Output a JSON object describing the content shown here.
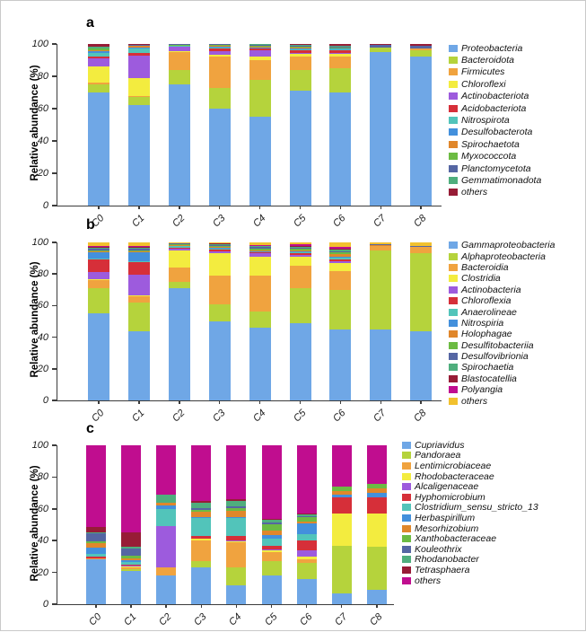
{
  "figure_title": "",
  "chart_data": [
    {
      "type": "bar",
      "stacked": true,
      "panel_label": "a",
      "ylabel": "Relative abundance (%)",
      "ylim": [
        0,
        100
      ],
      "yticks": [
        0,
        20,
        40,
        60,
        80,
        100
      ],
      "grid": false,
      "legend_position": "right",
      "categories": [
        "C0",
        "C1",
        "C2",
        "C3",
        "C4",
        "C5",
        "C6",
        "C7",
        "C8"
      ],
      "series": [
        {
          "name": "Proteobacteria",
          "color": "#6FA7E6",
          "values": [
            70,
            62,
            75,
            60,
            55,
            71,
            70,
            95,
            92
          ]
        },
        {
          "name": "Bacteroidota",
          "color": "#B5D33C",
          "values": [
            5,
            5,
            9,
            13,
            23,
            13,
            15,
            3,
            4
          ]
        },
        {
          "name": "Firmicutes",
          "color": "#F0A33F",
          "values": [
            1,
            1,
            11,
            19,
            12,
            8,
            7,
            0,
            1
          ]
        },
        {
          "name": "Chloroflexi",
          "color": "#F3EC3F",
          "values": [
            10,
            11,
            0.5,
            1.5,
            2,
            2,
            2,
            0,
            0
          ]
        },
        {
          "name": "Actinobacteriota",
          "color": "#9D5BDD",
          "values": [
            5,
            14,
            3,
            2,
            4,
            0.5,
            0.5,
            0,
            0
          ]
        },
        {
          "name": "Acidobacteriota",
          "color": "#D62F39",
          "values": [
            1.5,
            1.5,
            0,
            1.5,
            1,
            1.5,
            1.5,
            0,
            0
          ]
        },
        {
          "name": "Nitrospirota",
          "color": "#52C4BA",
          "values": [
            2,
            3,
            0.5,
            1,
            0.5,
            0.5,
            0.5,
            0,
            0
          ]
        },
        {
          "name": "Desulfobacterota",
          "color": "#4390DC",
          "values": [
            1,
            0.5,
            0,
            0.5,
            0.5,
            0.5,
            0.5,
            0,
            0
          ]
        },
        {
          "name": "Spirochaetota",
          "color": "#E0872B",
          "values": [
            0.5,
            1,
            0,
            0.5,
            0.5,
            1,
            0.5,
            0,
            0
          ]
        },
        {
          "name": "Myxococcota",
          "color": "#6CBB43",
          "values": [
            1,
            0,
            0.5,
            0.5,
            0.5,
            0.5,
            0.5,
            0,
            0
          ]
        },
        {
          "name": "Planctomycetota",
          "color": "#5566A3",
          "values": [
            0.5,
            0.5,
            0.5,
            0.5,
            0.5,
            0.5,
            0.5,
            1.5,
            2
          ]
        },
        {
          "name": "Gemmatimonadota",
          "color": "#4FAE7D",
          "values": [
            1,
            0,
            0,
            0,
            0.5,
            0.5,
            0.5,
            0,
            0
          ]
        },
        {
          "name": "others",
          "color": "#971C36",
          "values": [
            1.5,
            0.5,
            0,
            0,
            0,
            0.5,
            1,
            0.5,
            1
          ]
        }
      ]
    },
    {
      "type": "bar",
      "stacked": true,
      "panel_label": "b",
      "ylabel": "Relative abundance (%)",
      "ylim": [
        0,
        100
      ],
      "yticks": [
        0,
        20,
        40,
        60,
        80,
        100
      ],
      "grid": false,
      "legend_position": "right",
      "categories": [
        "C0",
        "C1",
        "C2",
        "C3",
        "C4",
        "C5",
        "C6",
        "C7",
        "C8"
      ],
      "series": [
        {
          "name": "Gammaproteobacteria",
          "color": "#6FA7E6",
          "values": [
            55,
            44,
            71,
            50,
            46,
            49,
            45,
            45,
            44
          ]
        },
        {
          "name": "Alphaproteobacteria",
          "color": "#B5D33C",
          "values": [
            16,
            18,
            4,
            11,
            10,
            22,
            25,
            50,
            49
          ]
        },
        {
          "name": "Bacteroidia",
          "color": "#F0A33F",
          "values": [
            5,
            4,
            9,
            18,
            23,
            14,
            12,
            2.5,
            4
          ]
        },
        {
          "name": "Clostridia",
          "color": "#F3EC3F",
          "values": [
            1,
            0.5,
            11,
            14,
            12,
            6,
            5,
            0,
            0
          ]
        },
        {
          "name": "Actinobacteria",
          "color": "#9D5BDD",
          "values": [
            4,
            13,
            1,
            1.5,
            2,
            1,
            1,
            0,
            0
          ]
        },
        {
          "name": "Chloroflexia",
          "color": "#D62F39",
          "values": [
            8,
            8,
            0.5,
            1,
            0.5,
            1.5,
            1.5,
            0,
            0
          ]
        },
        {
          "name": "Anaerolineae",
          "color": "#52C4BA",
          "values": [
            1,
            0.5,
            1,
            0.5,
            0.5,
            0.5,
            1,
            0,
            0
          ]
        },
        {
          "name": "Nitrospiria",
          "color": "#4390DC",
          "values": [
            4,
            6,
            0.5,
            0.5,
            0.5,
            0.5,
            0.5,
            0,
            0
          ]
        },
        {
          "name": "Holophagae",
          "color": "#E0872B",
          "values": [
            0.5,
            0.5,
            0.5,
            0.5,
            0.5,
            0.5,
            1.5,
            1,
            0
          ]
        },
        {
          "name": "Desulfitobacteriia",
          "color": "#6CBB43",
          "values": [
            0.5,
            0.5,
            0.5,
            1,
            1,
            1,
            1.5,
            0,
            0
          ]
        },
        {
          "name": "Desulfovibrionia",
          "color": "#5566A3",
          "values": [
            1,
            1,
            0.25,
            0.5,
            1,
            0.5,
            0.5,
            0.5,
            1
          ]
        },
        {
          "name": "Spirochaetia",
          "color": "#4FAE7D",
          "values": [
            0.5,
            0.5,
            0.25,
            0.5,
            0.5,
            0.5,
            1,
            0,
            0
          ]
        },
        {
          "name": "Blastocatellia",
          "color": "#971C36",
          "values": [
            0.5,
            0.5,
            0,
            0.25,
            0.5,
            1,
            0.5,
            0,
            0
          ]
        },
        {
          "name": "Polyangia",
          "color": "#C00D8F",
          "values": [
            0.5,
            0.5,
            0,
            0.5,
            0.5,
            1,
            1,
            0,
            0
          ]
        },
        {
          "name": "others",
          "color": "#F2C12E",
          "values": [
            2.5,
            2.5,
            0.5,
            0.25,
            1.5,
            1,
            3,
            1,
            2
          ]
        }
      ]
    },
    {
      "type": "bar",
      "stacked": true,
      "panel_label": "c",
      "ylabel": "Relative abundance (%)",
      "ylim": [
        0,
        100
      ],
      "yticks": [
        0,
        20,
        40,
        60,
        80,
        100
      ],
      "grid": false,
      "legend_position": "right",
      "categories": [
        "C0",
        "C1",
        "C2",
        "C3",
        "C4",
        "C5",
        "C6",
        "C7",
        "C8"
      ],
      "series": [
        {
          "name": "Cupriavidus",
          "color": "#6FA7E6",
          "values": [
            28,
            21,
            18,
            23,
            12,
            18,
            16,
            7,
            9
          ]
        },
        {
          "name": "Pandoraea",
          "color": "#B5D33C",
          "values": [
            0.5,
            1,
            0,
            4,
            11,
            9,
            10,
            30,
            27
          ]
        },
        {
          "name": "Lentimicrobiaceae",
          "color": "#F0A33F",
          "values": [
            0.5,
            1,
            5,
            13,
            16,
            6,
            2,
            0,
            0
          ]
        },
        {
          "name": "Rhodobacteraceae",
          "color": "#F3EC3F",
          "values": [
            0,
            1,
            0,
            1,
            0.5,
            1,
            2,
            20,
            21
          ]
        },
        {
          "name": "Alcaligenaceae",
          "color": "#9D5BDD",
          "values": [
            0,
            0.5,
            26,
            0.5,
            0.5,
            0.5,
            4,
            0,
            0
          ]
        },
        {
          "name": "Hyphomicrobium",
          "color": "#D62F39",
          "values": [
            1,
            0.5,
            0,
            1.5,
            3,
            2,
            6,
            10,
            10
          ]
        },
        {
          "name": "Clostridium_sensu_stricto_13",
          "color": "#52C4BA",
          "values": [
            1.5,
            1.5,
            11,
            11,
            11,
            5,
            4,
            0,
            0
          ]
        },
        {
          "name": "Herbaspirillum",
          "color": "#4390DC",
          "values": [
            4,
            1.5,
            2,
            1,
            1,
            2,
            7,
            2,
            3
          ]
        },
        {
          "name": "Mesorhizobium",
          "color": "#E0872B",
          "values": [
            3,
            1,
            2,
            3,
            4,
            3,
            1,
            2,
            3
          ]
        },
        {
          "name": "Xanthobacteraceae",
          "color": "#6CBB43",
          "values": [
            1,
            1.5,
            0,
            1.5,
            1.5,
            4,
            3,
            3,
            3
          ]
        },
        {
          "name": "Kouleothrix",
          "color": "#5566A3",
          "values": [
            5,
            4.5,
            0,
            1,
            1,
            1,
            0.5,
            0,
            0
          ]
        },
        {
          "name": "Rhodanobacter",
          "color": "#4FAE7D",
          "values": [
            0.5,
            1,
            5,
            3.5,
            3.5,
            1.5,
            1,
            0,
            0
          ]
        },
        {
          "name": "Tetrasphaera",
          "color": "#971C36",
          "values": [
            3.5,
            9,
            0,
            1,
            1,
            1,
            0.5,
            0,
            0
          ]
        },
        {
          "name": "others",
          "color": "#C00D8F",
          "values": [
            51.5,
            55,
            31,
            35,
            34,
            46,
            43,
            26,
            24
          ]
        }
      ]
    }
  ]
}
